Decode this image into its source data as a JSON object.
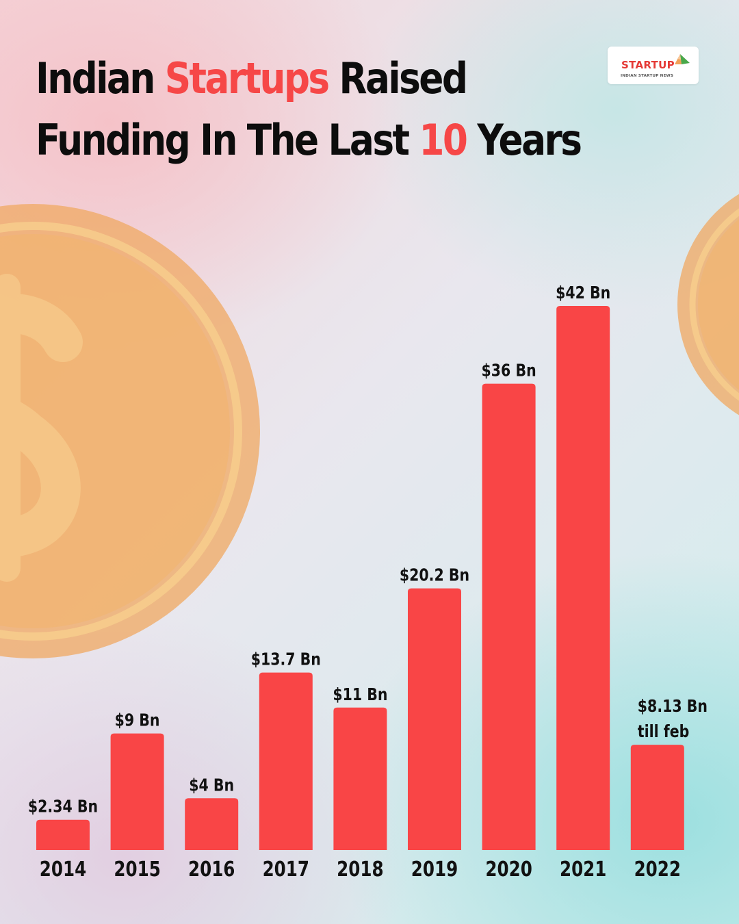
{
  "title": {
    "part1": "Indian ",
    "highlight1": "Startups",
    "part2": " Raised",
    "part3": "Funding In The Last ",
    "highlight2": "10",
    "part4": " Years"
  },
  "logo": {
    "word": "STARTUP",
    "subtitle": "INDIAN STARTUP NEWS"
  },
  "colors": {
    "bar": "#f94546",
    "highlight": "#f64747",
    "text": "#0d0d0d",
    "coin": "#f3b26c"
  },
  "chart_data": {
    "type": "bar",
    "title": "Indian Startups Raised Funding In The Last 10 Years",
    "xlabel": "",
    "ylabel": "",
    "ylim": [
      0,
      42
    ],
    "grid": false,
    "categories": [
      "2014",
      "2015",
      "2016",
      "2017",
      "2018",
      "2019",
      "2020",
      "2021",
      "2022"
    ],
    "values": [
      2.34,
      9,
      4,
      13.7,
      11,
      20.2,
      36,
      42,
      8.13
    ],
    "value_labels": [
      [
        "$2.34 Bn"
      ],
      [
        "$9 Bn"
      ],
      [
        "$4 Bn"
      ],
      [
        "$13.7 Bn"
      ],
      [
        "$11 Bn"
      ],
      [
        "$20.2 Bn"
      ],
      [
        "$36 Bn"
      ],
      [
        "$42 Bn"
      ],
      [
        "$8.13 Bn",
        "till feb"
      ]
    ]
  }
}
